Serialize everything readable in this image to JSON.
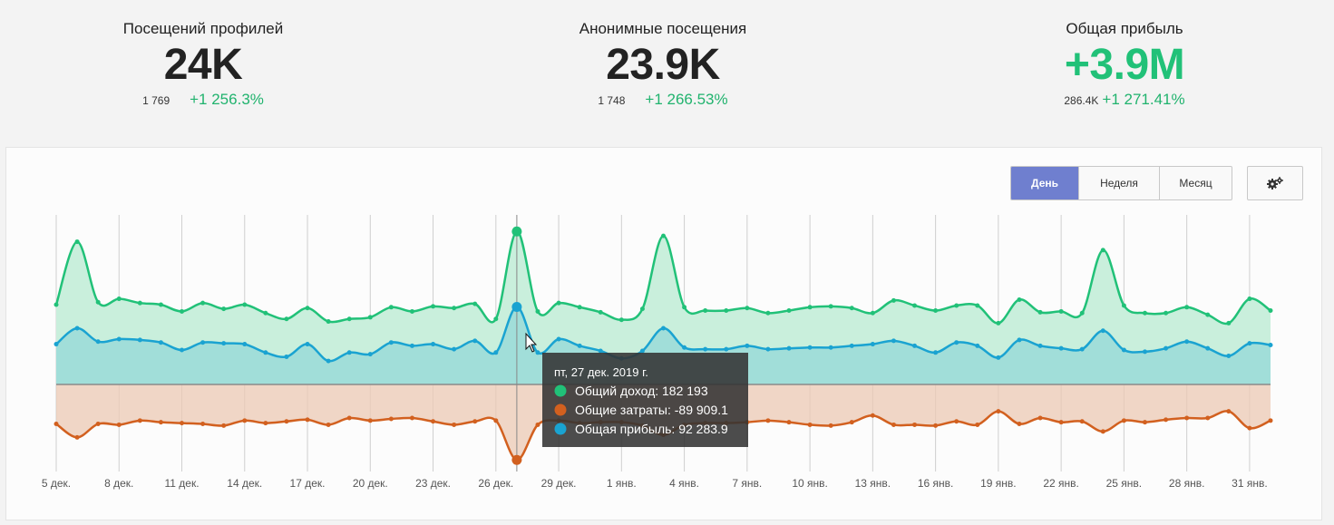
{
  "kpis": [
    {
      "label": "Посещений профилей",
      "value": "24K",
      "prev": "1 769",
      "change": "+1 256.3%"
    },
    {
      "label": "Анонимные посещения",
      "value": "23.9K",
      "prev": "1 748",
      "change": "+1 266.53%"
    },
    {
      "label": "Общая прибыль",
      "value": "+3.9M",
      "prev": "286.4K",
      "change": "+1 271.41%"
    }
  ],
  "period": {
    "day": "День",
    "week": "Неделя",
    "month": "Месяц",
    "selected": "День"
  },
  "settings": {
    "icon": "gears-icon"
  },
  "tooltip": {
    "title": "пт, 27 дек. 2019 г.",
    "rows": [
      {
        "label": "Общий доход: 182 193",
        "color": "#21c178"
      },
      {
        "label": "Общие затраты: -89 909.1",
        "color": "#d2601f"
      },
      {
        "label": "Общая прибыль: 92 283.9",
        "color": "#1aa3d1"
      }
    ]
  },
  "colors": {
    "income": "#21c178",
    "costs": "#d2601f",
    "profit": "#1aa3d1"
  },
  "chart_data": {
    "type": "area",
    "x": [
      "5 дек.",
      "6 дек.",
      "7 дек.",
      "8 дек.",
      "9 дек.",
      "10 дек.",
      "11 дек.",
      "12 дек.",
      "13 дек.",
      "14 дек.",
      "15 дек.",
      "16 дек.",
      "17 дек.",
      "18 дек.",
      "19 дек.",
      "20 дек.",
      "21 дек.",
      "22 дек.",
      "23 дек.",
      "24 дек.",
      "25 дек.",
      "26 дек.",
      "27 дек.",
      "28 дек.",
      "29 дек.",
      "30 дек.",
      "31 дек.",
      "1 янв.",
      "2 янв.",
      "3 янв.",
      "4 янв.",
      "5 янв.",
      "6 янв.",
      "7 янв.",
      "8 янв.",
      "9 янв.",
      "10 янв.",
      "11 янв.",
      "12 янв.",
      "13 янв.",
      "14 янв.",
      "15 янв.",
      "16 янв.",
      "17 янв.",
      "18 янв.",
      "19 янв.",
      "20 янв.",
      "21 янв.",
      "22 янв.",
      "23 янв.",
      "24 янв.",
      "25 янв.",
      "26 янв.",
      "27 янв.",
      "28 янв.",
      "29 янв.",
      "30 янв.",
      "31 янв.",
      "1 февр."
    ],
    "x_tick_labels": [
      "5 дек.",
      "8 дек.",
      "11 дек.",
      "14 дек.",
      "17 дек.",
      "20 дек.",
      "23 дек.",
      "26 дек.",
      "29 дек.",
      "1 янв.",
      "4 янв.",
      "7 янв.",
      "10 янв.",
      "13 янв.",
      "16 янв.",
      "19 янв.",
      "22 янв.",
      "25 янв.",
      "28 янв.",
      "31 янв."
    ],
    "ylim": [
      -100000,
      195000
    ],
    "series": [
      {
        "name": "Общий доход",
        "values": [
          95000,
          170000,
          98000,
          102000,
          97000,
          95000,
          87000,
          97000,
          90000,
          95000,
          85000,
          78000,
          91000,
          75000,
          78000,
          80000,
          92000,
          87000,
          93000,
          91000,
          96000,
          78000,
          182193,
          87000,
          97000,
          92000,
          86000,
          77000,
          90000,
          177000,
          92000,
          88000,
          88000,
          91000,
          85000,
          88000,
          92000,
          93000,
          91000,
          85000,
          100000,
          94000,
          88000,
          94000,
          94000,
          73000,
          101000,
          86000,
          87000,
          85000,
          160000,
          94000,
          85000,
          85000,
          92000,
          83000,
          73000,
          102000,
          88000
        ]
      },
      {
        "name": "Общие затраты",
        "values": [
          -47000,
          -63000,
          -47000,
          -48000,
          -43000,
          -45000,
          -46000,
          -47000,
          -49000,
          -43000,
          -46000,
          -44000,
          -42000,
          -48000,
          -40000,
          -43000,
          -41000,
          -40000,
          -44000,
          -48000,
          -44000,
          -43000,
          -89909.1,
          -48000,
          -43000,
          -46000,
          -45000,
          -45000,
          -49000,
          -60000,
          -48000,
          -46000,
          -46000,
          -45000,
          -43000,
          -45000,
          -48000,
          -49000,
          -45000,
          -37000,
          -48000,
          -48000,
          -49000,
          -44000,
          -48000,
          -32000,
          -47000,
          -40000,
          -45000,
          -44000,
          -56000,
          -43000,
          -45000,
          -42000,
          -40000,
          -40000,
          -32000,
          -52000,
          -43000
        ]
      },
      {
        "name": "Общая прибыль",
        "values": [
          48000,
          67000,
          51000,
          54000,
          53000,
          50000,
          41000,
          50000,
          49000,
          48000,
          38000,
          33000,
          48000,
          28000,
          38000,
          36000,
          50000,
          46000,
          48000,
          42000,
          52000,
          38000,
          92283.9,
          38000,
          54000,
          46000,
          40000,
          31000,
          40000,
          67000,
          44000,
          42000,
          42000,
          46000,
          42000,
          43000,
          44000,
          44000,
          46000,
          48000,
          52000,
          46000,
          38000,
          50000,
          46000,
          32000,
          53000,
          46000,
          43000,
          42000,
          64000,
          41000,
          39000,
          43000,
          51000,
          43000,
          34000,
          49000,
          47000
        ]
      }
    ]
  }
}
